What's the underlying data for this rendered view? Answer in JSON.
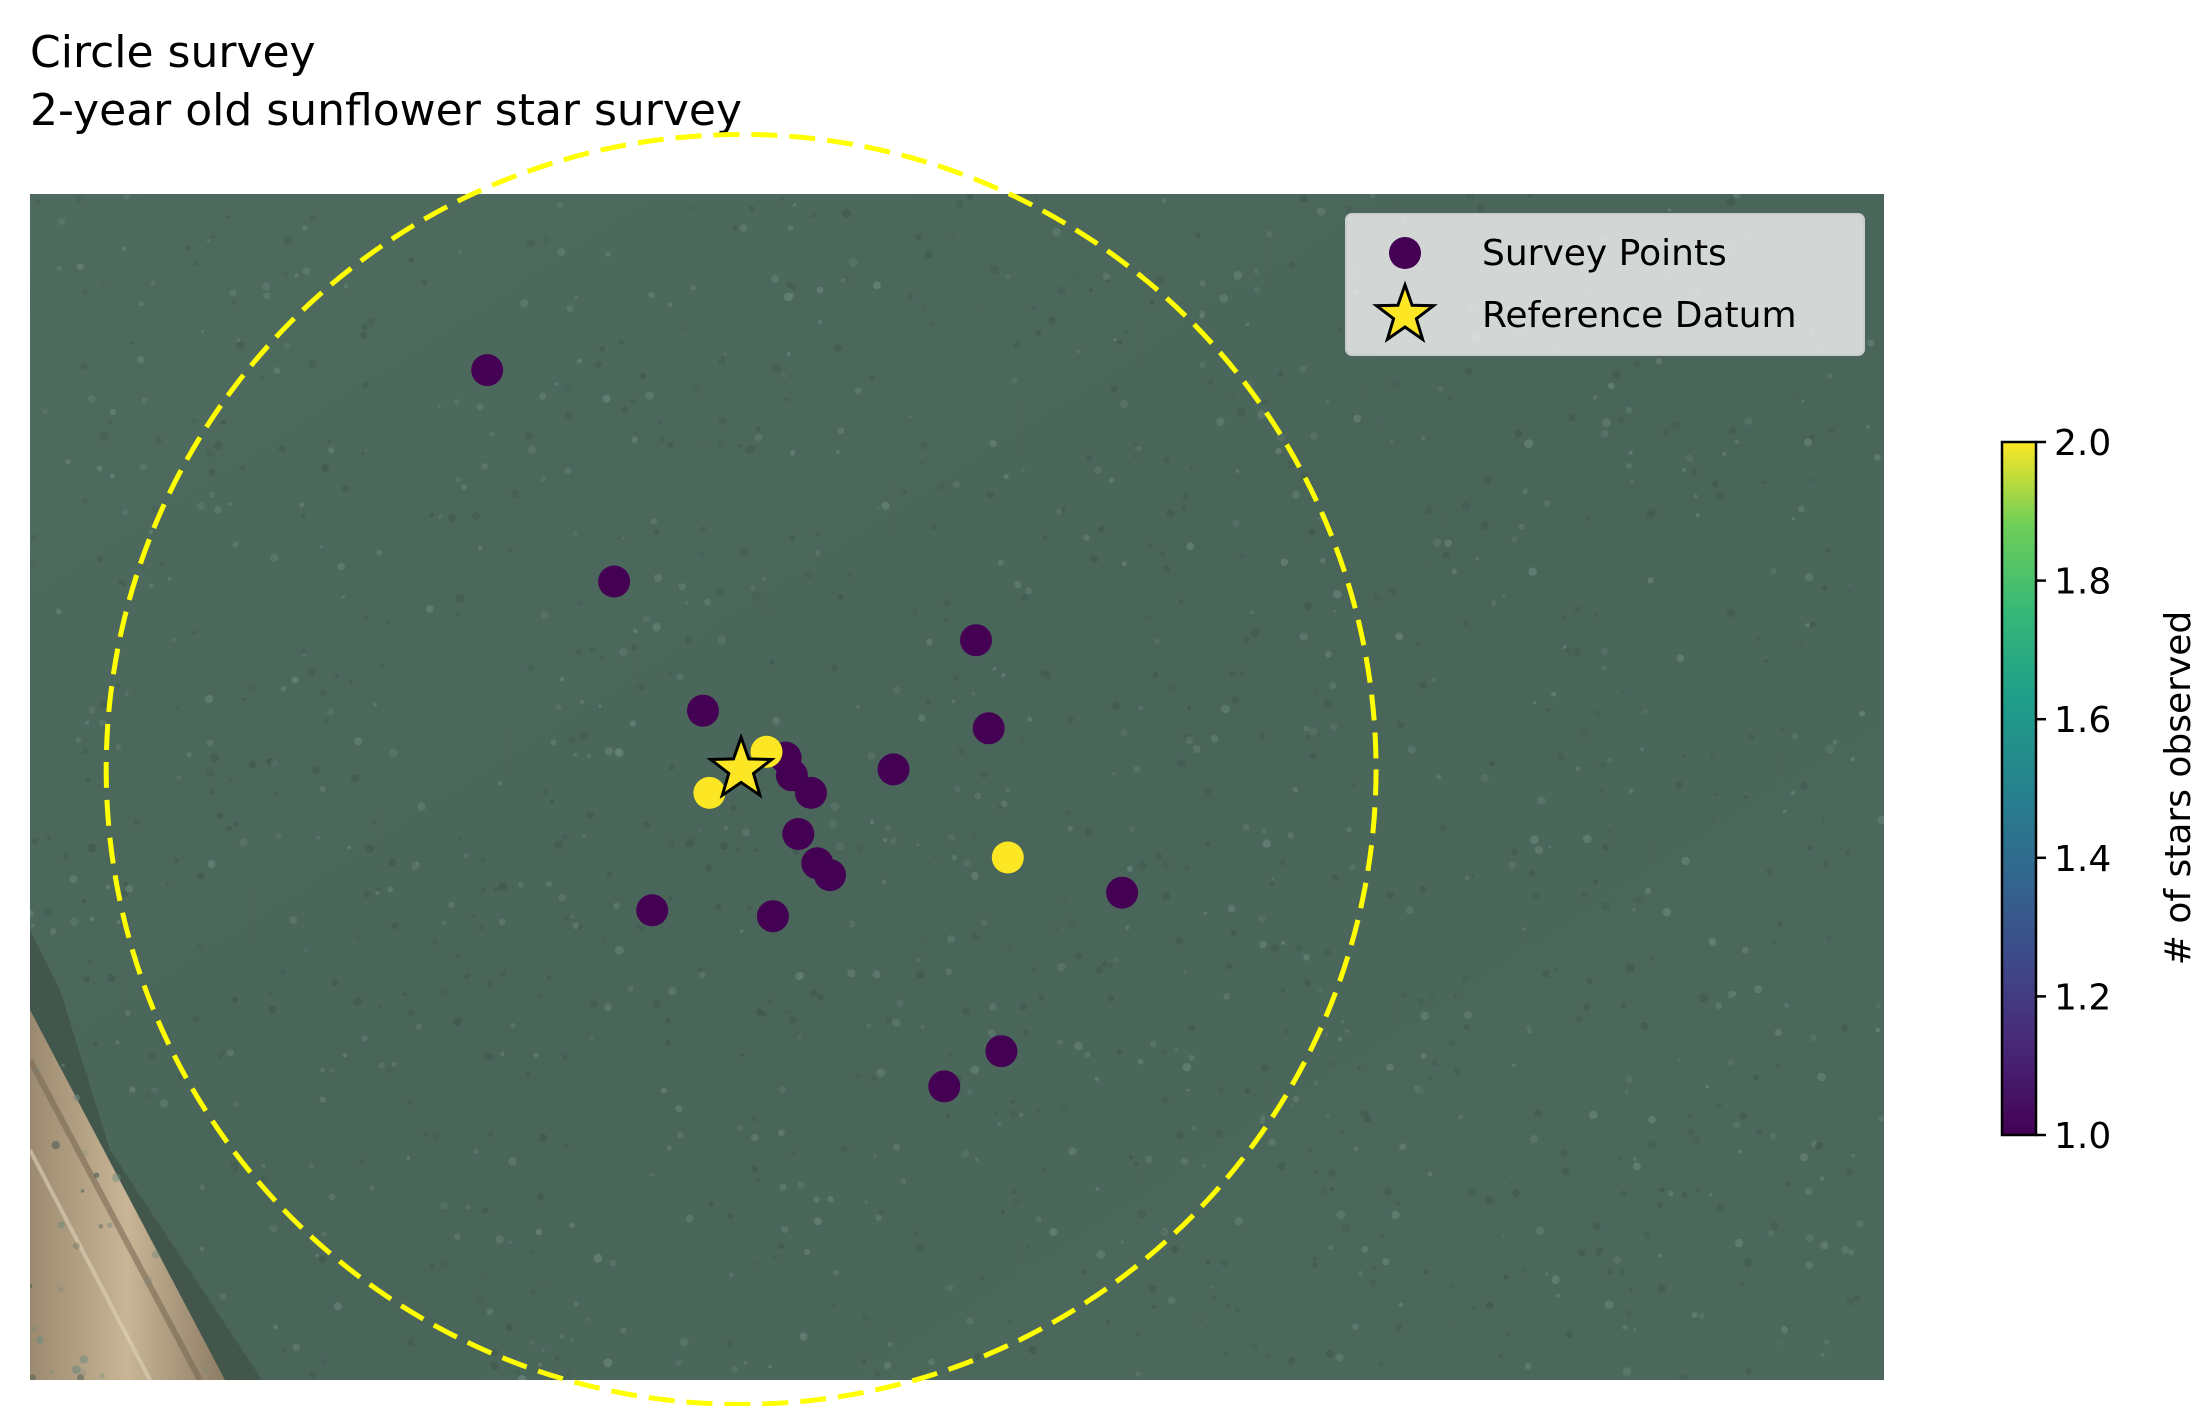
{
  "chart_data": {
    "type": "scatter",
    "title": "Circle survey",
    "subtitle": "2-year old sunflower star survey",
    "xlabel": "",
    "ylabel": "",
    "background": "aerial seafloor image",
    "grid": false,
    "legend": {
      "placement": "top-right",
      "entries": [
        {
          "label": "Survey Points",
          "marker": "circle",
          "color": "#440154"
        },
        {
          "label": "Reference Datum",
          "marker": "star",
          "color": "#fde725"
        }
      ]
    },
    "colorbar": {
      "label": "# of stars observed",
      "range": [
        1.0,
        2.0
      ],
      "ticks": [
        "1.0",
        "1.2",
        "1.4",
        "1.6",
        "1.8",
        "2.0"
      ],
      "colormap": "viridis"
    },
    "circle": {
      "style": "dashed",
      "color": "#ffff00"
    },
    "reference_datum": {
      "x": 0,
      "y": 0
    },
    "x_range": [
      -1.12,
      1.8
    ],
    "y_range": [
      -1.04,
      0.98
    ],
    "series": [
      {
        "name": "Survey Points",
        "points": [
          {
            "x": -0.4,
            "y": 0.68,
            "count": 1
          },
          {
            "x": -0.2,
            "y": 0.32,
            "count": 1
          },
          {
            "x": 0.37,
            "y": 0.22,
            "count": 1
          },
          {
            "x": -0.06,
            "y": 0.1,
            "count": 1
          },
          {
            "x": 0.39,
            "y": 0.07,
            "count": 1
          },
          {
            "x": 0.07,
            "y": 0.02,
            "count": 1
          },
          {
            "x": 0.04,
            "y": 0.03,
            "count": 2
          },
          {
            "x": 0.08,
            "y": -0.01,
            "count": 1
          },
          {
            "x": 0.24,
            "y": 0.0,
            "count": 1
          },
          {
            "x": -0.05,
            "y": -0.04,
            "count": 2
          },
          {
            "x": 0.11,
            "y": -0.04,
            "count": 1
          },
          {
            "x": 0.09,
            "y": -0.11,
            "count": 1
          },
          {
            "x": 0.12,
            "y": -0.16,
            "count": 1
          },
          {
            "x": 0.14,
            "y": -0.18,
            "count": 1
          },
          {
            "x": 0.42,
            "y": -0.15,
            "count": 2
          },
          {
            "x": 0.6,
            "y": -0.21,
            "count": 1
          },
          {
            "x": -0.14,
            "y": -0.24,
            "count": 1
          },
          {
            "x": 0.05,
            "y": -0.25,
            "count": 1
          },
          {
            "x": 0.41,
            "y": -0.48,
            "count": 1
          },
          {
            "x": 0.32,
            "y": -0.54,
            "count": 1
          }
        ]
      }
    ]
  }
}
